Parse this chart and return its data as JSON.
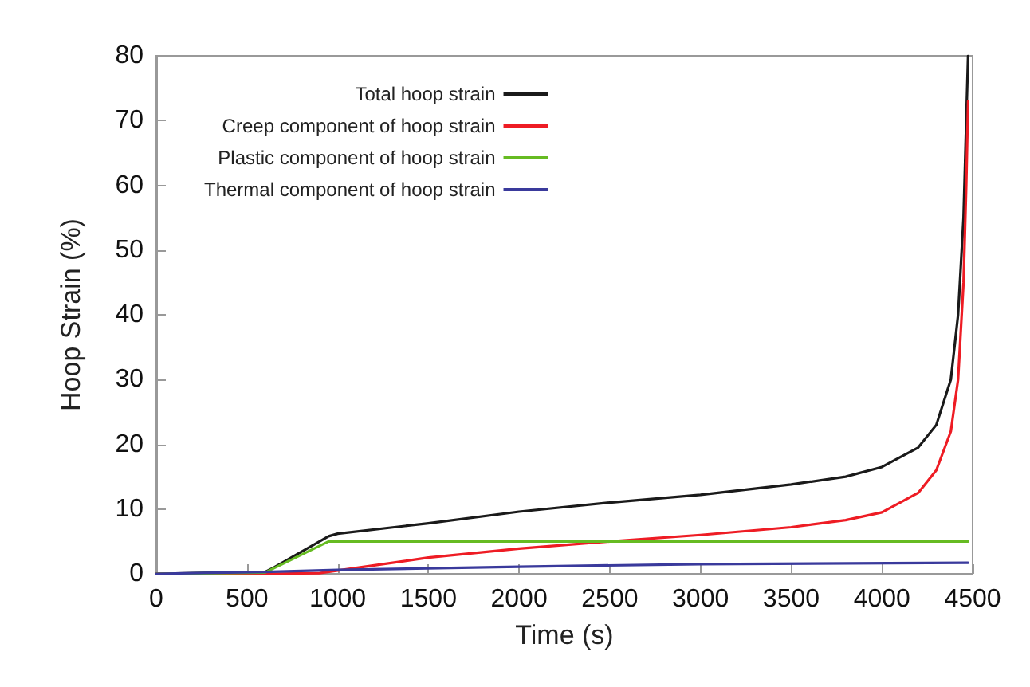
{
  "chart_data": {
    "type": "line",
    "xlabel": "Time (s)",
    "ylabel": "Hoop Strain (%)",
    "xlim": [
      0,
      4500
    ],
    "xticks": [
      0,
      500,
      1000,
      1500,
      2000,
      2500,
      3000,
      3500,
      4000,
      4500
    ],
    "ylim": [
      0,
      80
    ],
    "yticks": [
      0,
      10,
      20,
      30,
      40,
      50,
      60,
      70,
      80
    ],
    "grid": false,
    "legend": "top left",
    "marker": "none",
    "line_style": "solid",
    "series": [
      {
        "name": "Total hoop strain",
        "color": "#1a1a1a",
        "x": [
          0,
          600,
          650,
          950,
          1000,
          1500,
          2000,
          2500,
          3000,
          3500,
          3800,
          4000,
          4200,
          4300,
          4380,
          4420,
          4450,
          4465,
          4475
        ],
        "values": [
          0,
          0.3,
          1,
          5.8,
          6.2,
          7.8,
          9.6,
          11,
          12.2,
          13.8,
          15,
          16.5,
          19.5,
          23,
          30,
          40,
          55,
          70,
          80
        ]
      },
      {
        "name": "Creep component of hoop strain",
        "color": "#ee1c24",
        "x": [
          0,
          600,
          900,
          1000,
          1500,
          2000,
          2500,
          3000,
          3500,
          3800,
          4000,
          4200,
          4300,
          4380,
          4420,
          4450,
          4465,
          4475
        ],
        "values": [
          0,
          0,
          0.1,
          0.5,
          2.5,
          3.9,
          5,
          6,
          7.2,
          8.3,
          9.5,
          12.5,
          16,
          22,
          30,
          45,
          60,
          73
        ]
      },
      {
        "name": "Plastic component of hoop strain",
        "color": "#66bb22",
        "x": [
          0,
          600,
          950,
          4475
        ],
        "values": [
          0,
          0.2,
          5,
          5
        ]
      },
      {
        "name": "Thermal component of hoop strain",
        "color": "#3a3a9c",
        "x": [
          0,
          600,
          1000,
          2000,
          3000,
          4475
        ],
        "values": [
          0,
          0.3,
          0.6,
          1.1,
          1.5,
          1.7
        ]
      }
    ]
  }
}
